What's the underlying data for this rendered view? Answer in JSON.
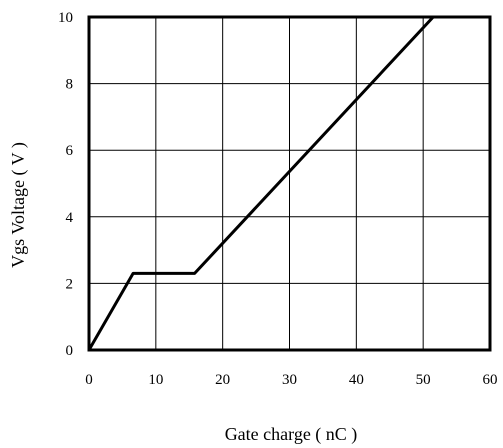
{
  "chart_data": {
    "type": "line",
    "title": "",
    "xlabel": "Gate charge ( nC )",
    "ylabel": "Vgs Voltage ( V )",
    "xlim": [
      0,
      60
    ],
    "ylim": [
      0,
      10
    ],
    "xticks": [
      0,
      10,
      20,
      30,
      40,
      50,
      60
    ],
    "yticks": [
      0,
      2,
      4,
      6,
      8,
      10
    ],
    "grid": true,
    "legend": "none",
    "series": [
      {
        "color": "#000000",
        "points": [
          [
            0,
            0
          ],
          [
            6.6,
            2.3
          ],
          [
            15.8,
            2.3
          ],
          [
            51.5,
            10
          ]
        ]
      }
    ]
  }
}
